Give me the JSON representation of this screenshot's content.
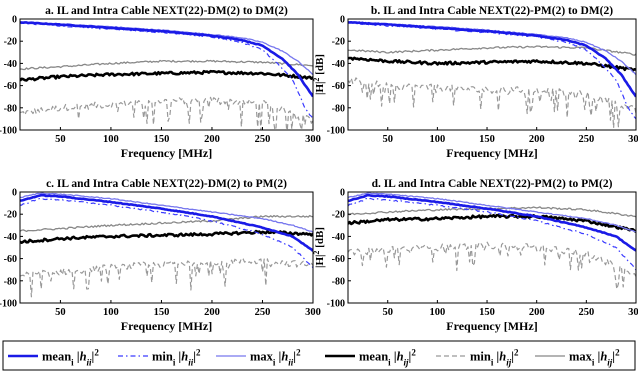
{
  "chart_data": [
    {
      "type": "line",
      "title": "a. IL and Intra Cable NEXT(22)-DM(2) to DM(2)",
      "xlabel": "Frequency [MHz]",
      "ylabel_main": "|H|",
      "ylabel_sup": "2",
      "ylabel_unit": " [dB]",
      "xlim": [
        10,
        300
      ],
      "ylim": [
        -100,
        0
      ],
      "xticks": [
        50,
        100,
        150,
        200,
        250,
        300
      ],
      "yticks": [
        0,
        -20,
        -40,
        -60,
        -80,
        -100
      ],
      "grid": false,
      "il": {
        "mean": [
          [
            10,
            -3
          ],
          [
            50,
            -5
          ],
          [
            100,
            -8
          ],
          [
            150,
            -11
          ],
          [
            200,
            -15
          ],
          [
            230,
            -19
          ],
          [
            250,
            -24
          ],
          [
            270,
            -36
          ],
          [
            285,
            -50
          ],
          [
            300,
            -70
          ]
        ],
        "min": [
          [
            10,
            -3.5
          ],
          [
            50,
            -6
          ],
          [
            100,
            -9
          ],
          [
            150,
            -12
          ],
          [
            200,
            -16
          ],
          [
            230,
            -21
          ],
          [
            250,
            -28
          ],
          [
            265,
            -40
          ],
          [
            280,
            -55
          ],
          [
            292,
            -80
          ],
          [
            300,
            -90
          ]
        ],
        "max": [
          [
            10,
            -3
          ],
          [
            50,
            -4.5
          ],
          [
            100,
            -7
          ],
          [
            150,
            -10
          ],
          [
            200,
            -14
          ],
          [
            230,
            -17
          ],
          [
            250,
            -21
          ],
          [
            270,
            -29
          ],
          [
            285,
            -38
          ],
          [
            300,
            -50
          ]
        ]
      },
      "next": {
        "mean": [
          [
            10,
            -55
          ],
          [
            50,
            -52
          ],
          [
            100,
            -50
          ],
          [
            150,
            -49
          ],
          [
            200,
            -48
          ],
          [
            250,
            -49
          ],
          [
            300,
            -53
          ]
        ],
        "min": [
          [
            10,
            -85
          ],
          [
            50,
            -80
          ],
          [
            100,
            -77
          ],
          [
            150,
            -74
          ],
          [
            200,
            -73
          ],
          [
            250,
            -76
          ],
          [
            300,
            -90
          ]
        ],
        "max": [
          [
            10,
            -45
          ],
          [
            50,
            -43
          ],
          [
            100,
            -40
          ],
          [
            150,
            -38
          ],
          [
            200,
            -38
          ],
          [
            250,
            -39
          ],
          [
            300,
            -42
          ]
        ]
      }
    },
    {
      "type": "line",
      "title": "b. IL and Intra Cable NEXT(22)-PM(2) to DM(2)",
      "xlabel": "Frequency [MHz]",
      "ylabel_main": "|H|",
      "ylabel_sup": "2",
      "ylabel_unit": " [dB]",
      "xlim": [
        10,
        300
      ],
      "ylim": [
        -100,
        0
      ],
      "xticks": [
        50,
        100,
        150,
        200,
        250,
        300
      ],
      "yticks": [
        0,
        -20,
        -40,
        -60,
        -80,
        -100
      ],
      "grid": false,
      "il": {
        "mean": [
          [
            10,
            -3
          ],
          [
            50,
            -5
          ],
          [
            100,
            -8
          ],
          [
            150,
            -11
          ],
          [
            200,
            -15
          ],
          [
            230,
            -19
          ],
          [
            250,
            -24
          ],
          [
            270,
            -36
          ],
          [
            285,
            -50
          ],
          [
            300,
            -70
          ]
        ],
        "min": [
          [
            10,
            -3.5
          ],
          [
            50,
            -6
          ],
          [
            100,
            -9
          ],
          [
            150,
            -12
          ],
          [
            200,
            -16
          ],
          [
            230,
            -21
          ],
          [
            250,
            -28
          ],
          [
            265,
            -40
          ],
          [
            280,
            -55
          ],
          [
            292,
            -80
          ],
          [
            300,
            -90
          ]
        ],
        "max": [
          [
            10,
            -3
          ],
          [
            50,
            -4.5
          ],
          [
            100,
            -7
          ],
          [
            150,
            -10
          ],
          [
            200,
            -14
          ],
          [
            230,
            -17
          ],
          [
            250,
            -21
          ],
          [
            270,
            -29
          ],
          [
            285,
            -38
          ],
          [
            300,
            -50
          ]
        ]
      },
      "next": {
        "mean": [
          [
            10,
            -35
          ],
          [
            50,
            -38
          ],
          [
            100,
            -40
          ],
          [
            150,
            -39
          ],
          [
            200,
            -38
          ],
          [
            250,
            -40
          ],
          [
            300,
            -46
          ]
        ],
        "min": [
          [
            10,
            -55
          ],
          [
            50,
            -60
          ],
          [
            100,
            -62
          ],
          [
            150,
            -64
          ],
          [
            200,
            -64
          ],
          [
            250,
            -68
          ],
          [
            300,
            -82
          ]
        ],
        "max": [
          [
            10,
            -28
          ],
          [
            50,
            -30
          ],
          [
            100,
            -28
          ],
          [
            150,
            -26
          ],
          [
            200,
            -25
          ],
          [
            250,
            -26
          ],
          [
            300,
            -32
          ]
        ]
      }
    },
    {
      "type": "line",
      "title": "c. IL and Intra Cable NEXT(22)-DM(2) to PM(2)",
      "xlabel": "Frequency [MHz]",
      "ylabel_main": "|H|",
      "ylabel_sup": "2",
      "ylabel_unit": " [dB]",
      "xlim": [
        10,
        300
      ],
      "ylim": [
        -100,
        0
      ],
      "xticks": [
        50,
        100,
        150,
        200,
        250,
        300
      ],
      "yticks": [
        0,
        -20,
        -40,
        -60,
        -80,
        -100
      ],
      "grid": false,
      "il": {
        "mean": [
          [
            10,
            -8
          ],
          [
            30,
            -3
          ],
          [
            50,
            -4
          ],
          [
            100,
            -9
          ],
          [
            150,
            -15
          ],
          [
            200,
            -22
          ],
          [
            250,
            -32
          ],
          [
            280,
            -40
          ],
          [
            300,
            -53
          ]
        ],
        "min": [
          [
            10,
            -12
          ],
          [
            30,
            -6
          ],
          [
            50,
            -7
          ],
          [
            100,
            -12
          ],
          [
            150,
            -18
          ],
          [
            200,
            -26
          ],
          [
            250,
            -38
          ],
          [
            280,
            -50
          ],
          [
            300,
            -68
          ]
        ],
        "max": [
          [
            10,
            -5
          ],
          [
            30,
            -1
          ],
          [
            50,
            -2
          ],
          [
            100,
            -6
          ],
          [
            150,
            -12
          ],
          [
            200,
            -18
          ],
          [
            250,
            -24
          ],
          [
            280,
            -30
          ],
          [
            300,
            -36
          ]
        ]
      },
      "next": {
        "mean": [
          [
            10,
            -45
          ],
          [
            50,
            -42
          ],
          [
            100,
            -40
          ],
          [
            150,
            -39
          ],
          [
            200,
            -38
          ],
          [
            250,
            -36
          ],
          [
            300,
            -38
          ]
        ],
        "min": [
          [
            10,
            -75
          ],
          [
            50,
            -72
          ],
          [
            100,
            -68
          ],
          [
            150,
            -65
          ],
          [
            200,
            -63
          ],
          [
            250,
            -62
          ],
          [
            300,
            -66
          ]
        ],
        "max": [
          [
            10,
            -35
          ],
          [
            50,
            -33
          ],
          [
            100,
            -30
          ],
          [
            150,
            -28
          ],
          [
            200,
            -26
          ],
          [
            250,
            -22
          ],
          [
            300,
            -22
          ]
        ]
      }
    },
    {
      "type": "line",
      "title": "d. IL and Intra Cable NEXT(22)-PM(2) to PM(2)",
      "xlabel": "Frequency [MHz]",
      "ylabel_main": "|H|",
      "ylabel_sup": "2",
      "ylabel_unit": " [dB]",
      "xlim": [
        10,
        300
      ],
      "ylim": [
        -100,
        0
      ],
      "xticks": [
        50,
        100,
        150,
        200,
        250,
        300
      ],
      "yticks": [
        0,
        -20,
        -40,
        -60,
        -80,
        -100
      ],
      "grid": false,
      "il": {
        "mean": [
          [
            10,
            -8
          ],
          [
            30,
            -3
          ],
          [
            50,
            -4
          ],
          [
            100,
            -9
          ],
          [
            150,
            -15
          ],
          [
            200,
            -22
          ],
          [
            250,
            -32
          ],
          [
            280,
            -40
          ],
          [
            300,
            -53
          ]
        ],
        "min": [
          [
            10,
            -12
          ],
          [
            30,
            -6
          ],
          [
            50,
            -7
          ],
          [
            100,
            -12
          ],
          [
            150,
            -18
          ],
          [
            200,
            -26
          ],
          [
            250,
            -38
          ],
          [
            280,
            -50
          ],
          [
            300,
            -70
          ]
        ],
        "max": [
          [
            10,
            -5
          ],
          [
            30,
            -1
          ],
          [
            50,
            -2
          ],
          [
            100,
            -6
          ],
          [
            150,
            -12
          ],
          [
            200,
            -18
          ],
          [
            250,
            -24
          ],
          [
            280,
            -30
          ],
          [
            300,
            -36
          ]
        ]
      },
      "next": {
        "mean": [
          [
            10,
            -28
          ],
          [
            50,
            -25
          ],
          [
            100,
            -24
          ],
          [
            150,
            -22
          ],
          [
            200,
            -22
          ],
          [
            250,
            -26
          ],
          [
            300,
            -35
          ]
        ],
        "min": [
          [
            10,
            -55
          ],
          [
            50,
            -52
          ],
          [
            100,
            -50
          ],
          [
            150,
            -48
          ],
          [
            200,
            -50
          ],
          [
            250,
            -55
          ],
          [
            300,
            -75
          ]
        ],
        "max": [
          [
            10,
            -20
          ],
          [
            50,
            -18
          ],
          [
            100,
            -16
          ],
          [
            150,
            -15
          ],
          [
            200,
            -14
          ],
          [
            250,
            -16
          ],
          [
            300,
            -22
          ]
        ]
      }
    }
  ],
  "legend": {
    "placement": "bottom",
    "entries": [
      {
        "prefix": "mean",
        "sub": "i",
        "body": " |h",
        "idx": "ii",
        "tail": "|",
        "sup": "2",
        "color": "#1a1ae6",
        "dash": "",
        "width": 2.6
      },
      {
        "prefix": "min",
        "sub": "i",
        "body": " |h",
        "idx": "ii",
        "tail": "|",
        "sup": "2",
        "color": "#3a3aff",
        "dash": "5,3,1.5,3",
        "width": 1.2
      },
      {
        "prefix": "max",
        "sub": "i",
        "body": " |h",
        "idx": "ii",
        "tail": "|",
        "sup": "2",
        "color": "#7777ee",
        "dash": "",
        "width": 1.3
      },
      {
        "prefix": "mean",
        "sub": "i",
        "body": " |h",
        "idx": "ij",
        "tail": "|",
        "sup": "2",
        "color": "#000000",
        "dash": "",
        "width": 2.6
      },
      {
        "prefix": "min",
        "sub": "i",
        "body": " |h",
        "idx": "ij",
        "tail": "|",
        "sup": "2",
        "color": "#999999",
        "dash": "5,3",
        "width": 1.2
      },
      {
        "prefix": "max",
        "sub": "i",
        "body": " |h",
        "idx": "ij",
        "tail": "|",
        "sup": "2",
        "color": "#888888",
        "dash": "",
        "width": 1.3
      }
    ]
  }
}
